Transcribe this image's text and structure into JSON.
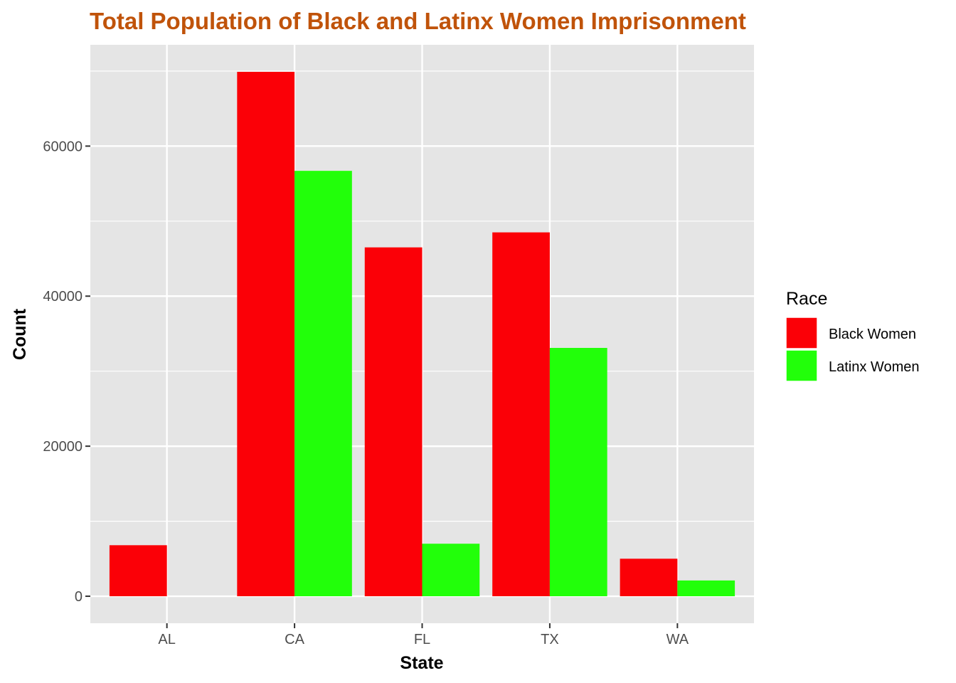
{
  "chart_data": {
    "type": "bar",
    "title": "Total Population of Black and Latinx Women Imprisonment",
    "xlabel": "State",
    "ylabel": "Count",
    "categories": [
      "AL",
      "CA",
      "FL",
      "TX",
      "WA"
    ],
    "series": [
      {
        "name": "Black Women",
        "color": "#fb0007",
        "values": [
          6800,
          69900,
          46500,
          48500,
          5000
        ]
      },
      {
        "name": "Latinx Women",
        "color": "#22ff0a",
        "values": [
          null,
          56700,
          7000,
          33100,
          2100
        ]
      }
    ],
    "ylim": [
      -3600,
      73500
    ],
    "yticks": [
      0,
      20000,
      40000,
      60000
    ],
    "grid": true,
    "legend": {
      "title": "Race",
      "position": "right"
    }
  },
  "colors": {
    "title": "#c0530a",
    "panel": "#e5e5e5",
    "grid": "#ffffff"
  }
}
